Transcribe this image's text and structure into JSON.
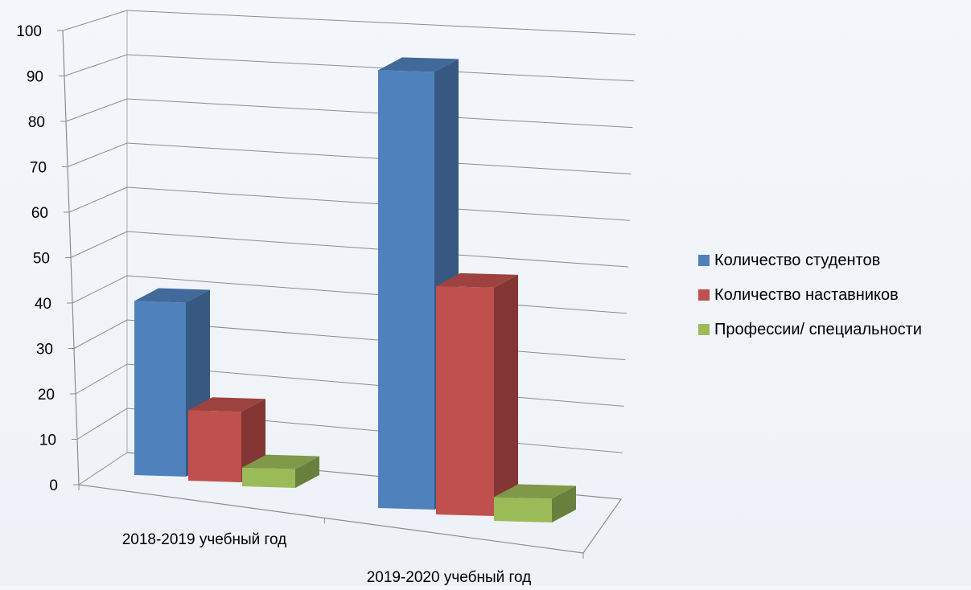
{
  "chart_data": {
    "type": "bar",
    "title": "",
    "xlabel": "",
    "ylabel": "",
    "ylim": [
      0,
      100
    ],
    "yticks": [
      0,
      10,
      20,
      30,
      40,
      50,
      60,
      70,
      80,
      90,
      100
    ],
    "grid": true,
    "legend_position": "right",
    "three_d": true,
    "categories": [
      "2018-2019 учебный год",
      "2019-2020 учебный год"
    ],
    "series": [
      {
        "name": "Количество студентов",
        "values": [
          37,
          92
        ],
        "color": "#4f81bd"
      },
      {
        "name": "Количество наставников",
        "values": [
          15,
          48
        ],
        "color": "#c0504d"
      },
      {
        "name": "Профессии/ специальности",
        "values": [
          4,
          5
        ],
        "color": "#9bbb59"
      }
    ]
  }
}
